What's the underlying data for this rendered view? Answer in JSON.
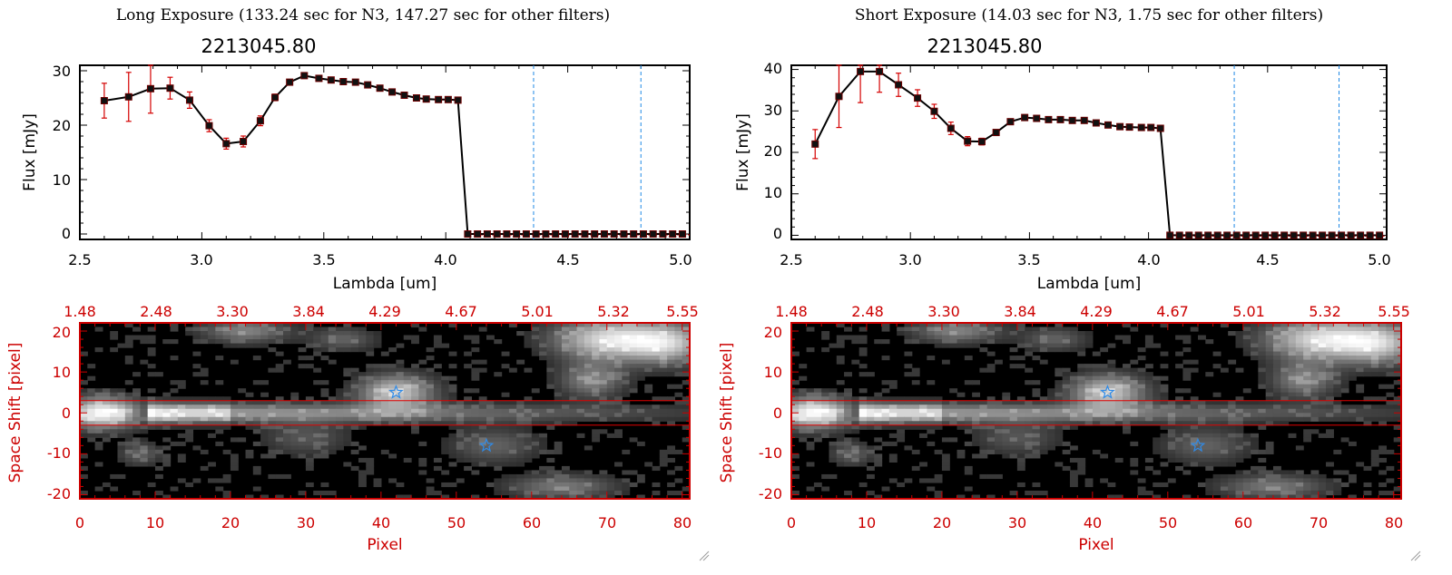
{
  "panels": [
    {
      "header": "Long Exposure (133.24 sec for N3, 147.27 sec for other filters)",
      "spectrum": {
        "title": "2213045.80",
        "xlabel": "Lambda [um]",
        "ylabel": "Flux [mJy]",
        "xticks": [
          "2.5",
          "3.0",
          "3.5",
          "4.0",
          "4.5",
          "5.0"
        ],
        "yticks": [
          "0",
          "10",
          "20",
          "30"
        ]
      },
      "image": {
        "top_ticks": [
          "1.48",
          "2.48",
          "3.30",
          "3.84",
          "4.29",
          "4.67",
          "5.01",
          "5.32",
          "5.55"
        ],
        "bottom_ticks": [
          "0",
          "10",
          "20",
          "30",
          "40",
          "50",
          "60",
          "70",
          "80"
        ],
        "yticks": [
          "20",
          "10",
          "0",
          "-10",
          "-20"
        ],
        "xlabel": "Pixel",
        "ylabel": "Space Shift [pixel]"
      }
    },
    {
      "header": "Short Exposure (14.03 sec for N3, 1.75 sec for other filters)",
      "spectrum": {
        "title": "2213045.80",
        "xlabel": "Lambda [um]",
        "ylabel": "Flux [mJy]",
        "xticks": [
          "2.5",
          "3.0",
          "3.5",
          "4.0",
          "4.5",
          "5.0"
        ],
        "yticks": [
          "0",
          "10",
          "20",
          "30",
          "40"
        ]
      },
      "image": {
        "top_ticks": [
          "1.48",
          "2.48",
          "3.30",
          "3.84",
          "4.29",
          "4.67",
          "5.01",
          "5.32",
          "5.55"
        ],
        "bottom_ticks": [
          "0",
          "10",
          "20",
          "30",
          "40",
          "50",
          "60",
          "70",
          "80"
        ],
        "yticks": [
          "20",
          "10",
          "0",
          "-10",
          "-20"
        ],
        "xlabel": "Pixel",
        "ylabel": "Space Shift [pixel]"
      }
    }
  ],
  "chart_data": [
    {
      "type": "line",
      "title": "2213045.80",
      "xlabel": "Lambda [um]",
      "ylabel": "Flux [mJy]",
      "xlim": [
        2.5,
        5.0
      ],
      "ylim": [
        -1,
        31
      ],
      "vlines": [
        4.36,
        4.8
      ],
      "x": [
        2.6,
        2.7,
        2.79,
        2.87,
        2.95,
        3.03,
        3.1,
        3.17,
        3.24,
        3.3,
        3.36,
        3.42,
        3.48,
        3.53,
        3.58,
        3.63,
        3.68,
        3.73,
        3.78,
        3.83,
        3.88,
        3.92,
        3.97,
        4.01,
        4.05,
        4.09,
        4.13,
        4.17,
        4.21,
        4.25,
        4.29,
        4.33,
        4.37,
        4.41,
        4.45,
        4.49,
        4.53,
        4.57,
        4.61,
        4.65,
        4.69,
        4.73,
        4.77,
        4.81,
        4.85,
        4.89,
        4.93,
        4.97
      ],
      "y": [
        24.5,
        25.2,
        26.7,
        26.8,
        24.6,
        19.9,
        16.6,
        17.0,
        20.8,
        25.1,
        27.9,
        29.1,
        28.6,
        28.3,
        28.0,
        27.9,
        27.4,
        26.8,
        26.1,
        25.5,
        25.0,
        24.8,
        24.7,
        24.7,
        24.6,
        0,
        0,
        0,
        0,
        0,
        0,
        0,
        0,
        0,
        0,
        0,
        0,
        0,
        0,
        0,
        0,
        0,
        0,
        0,
        0,
        0,
        0,
        0
      ],
      "err": [
        3.2,
        4.5,
        4.5,
        2.0,
        1.5,
        1.1,
        1.0,
        1.0,
        0.9,
        0.6,
        0.5,
        0.4,
        0.3,
        0.3,
        0.3,
        0.3,
        0.3,
        0.3,
        0.3,
        0.3,
        0.3,
        0.3,
        0.3,
        0.3,
        0.3,
        0,
        0,
        0,
        0,
        0,
        0,
        0,
        0,
        0,
        0,
        0,
        0,
        0,
        0,
        0,
        0,
        0,
        0,
        0,
        0,
        0,
        0,
        0
      ]
    },
    {
      "type": "line",
      "title": "2213045.80",
      "xlabel": "Lambda [um]",
      "ylabel": "Flux [mJy]",
      "xlim": [
        2.5,
        5.0
      ],
      "ylim": [
        -1,
        41
      ],
      "vlines": [
        4.36,
        4.8
      ],
      "x": [
        2.6,
        2.7,
        2.79,
        2.87,
        2.95,
        3.03,
        3.1,
        3.17,
        3.24,
        3.3,
        3.36,
        3.42,
        3.48,
        3.53,
        3.58,
        3.63,
        3.68,
        3.73,
        3.78,
        3.83,
        3.88,
        3.92,
        3.97,
        4.01,
        4.05,
        4.09,
        4.13,
        4.17,
        4.21,
        4.25,
        4.29,
        4.33,
        4.37,
        4.41,
        4.45,
        4.49,
        4.53,
        4.57,
        4.61,
        4.65,
        4.69,
        4.73,
        4.77,
        4.81,
        4.85,
        4.89,
        4.93,
        4.97
      ],
      "y": [
        22.0,
        33.5,
        39.5,
        39.5,
        36.3,
        33.1,
        29.9,
        25.8,
        22.7,
        22.6,
        24.8,
        27.4,
        28.4,
        28.2,
        27.9,
        27.9,
        27.7,
        27.7,
        27.1,
        26.6,
        26.2,
        26.1,
        26.0,
        26.0,
        25.8,
        0,
        0,
        0,
        0,
        0,
        0,
        0,
        0,
        0,
        0,
        0,
        0,
        0,
        0,
        0,
        0,
        0,
        0,
        0,
        0,
        0,
        0,
        0
      ],
      "err": [
        3.5,
        7.5,
        7.5,
        5.0,
        2.8,
        2.0,
        1.7,
        1.5,
        1.1,
        0.8,
        0.6,
        0.5,
        0.4,
        0.4,
        0.4,
        0.4,
        0.4,
        0.4,
        0.4,
        0.4,
        0.4,
        0.4,
        0.4,
        0.4,
        0.4,
        0,
        0,
        0,
        0,
        0,
        0,
        0,
        0,
        0,
        0,
        0,
        0,
        0,
        0,
        0,
        0,
        0,
        0,
        0,
        0,
        0,
        0,
        0
      ]
    },
    {
      "type": "heatmap",
      "xlabel": "Pixel",
      "ylabel": "Space Shift [pixel]",
      "xlim": [
        0,
        81
      ],
      "ylim": [
        -21,
        22
      ],
      "top_axis": [
        "1.48",
        "2.48",
        "3.30",
        "3.84",
        "4.29",
        "4.67",
        "5.01",
        "5.32",
        "5.55"
      ],
      "hlines": [
        3,
        -3
      ],
      "sources": [
        [
          3,
          0,
          1.0,
          3.5,
          2.6
        ],
        [
          42,
          5,
          0.75,
          3.5,
          3.0
        ],
        [
          70,
          18,
          0.8,
          5.0,
          3.5
        ],
        [
          68,
          8,
          0.45,
          3.0,
          3.0
        ],
        [
          22,
          20,
          0.45,
          4.0,
          2.0
        ],
        [
          64,
          -18,
          0.4,
          5.0,
          2.0
        ],
        [
          78,
          17,
          0.7,
          4.0,
          3.5
        ],
        [
          55,
          -8,
          0.3,
          4.0,
          3.0
        ],
        [
          35,
          18,
          0.3,
          3.0,
          2.0
        ],
        [
          8,
          -10,
          0.3,
          2.0,
          2.0
        ],
        [
          30,
          -6,
          0.25,
          4.0,
          3.0
        ]
      ],
      "ridge": {
        "x_start": 9,
        "x_end": 81,
        "y": 0,
        "width": 1.6
      },
      "stars": [
        [
          42,
          5
        ],
        [
          54,
          -8
        ]
      ]
    }
  ]
}
